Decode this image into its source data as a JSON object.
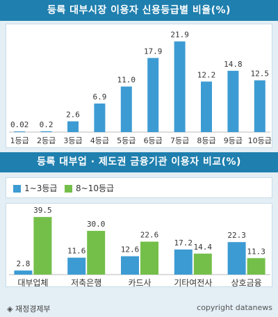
{
  "chart_data": [
    {
      "type": "bar",
      "title": "등록 대부시장 이용자 신용등급별 비율(%)",
      "categories": [
        "1등급",
        "2등급",
        "3등급",
        "4등급",
        "5등급",
        "6등급",
        "7등급",
        "8등급",
        "9등급",
        "10등급"
      ],
      "values": [
        0.02,
        0.2,
        2.6,
        6.9,
        11.0,
        17.9,
        21.9,
        12.2,
        14.8,
        12.5
      ],
      "value_labels": [
        "0.02",
        "0.2",
        "2.6",
        "6.9",
        "11.0",
        "17.9",
        "21.9",
        "12.2",
        "14.8",
        "12.5"
      ],
      "ylim": [
        0,
        23
      ],
      "grid": false,
      "color": "#3d9bd3"
    },
    {
      "type": "bar",
      "title": "등록 대부업 · 제도권 금융기관 이용자 비교(%)",
      "categories": [
        "대부업체",
        "저축은행",
        "카드사",
        "기타여전사",
        "상호금융"
      ],
      "series": [
        {
          "name": "1~3등급",
          "values": [
            2.8,
            11.6,
            12.6,
            17.2,
            22.3
          ],
          "value_labels": [
            "2.8",
            "11.6",
            "12.6",
            "17.2",
            "22.3"
          ],
          "color": "#3d9bd3"
        },
        {
          "name": "8~10등급",
          "values": [
            39.5,
            30.0,
            22.6,
            14.4,
            11.3
          ],
          "value_labels": [
            "39.5",
            "30.0",
            "22.6",
            "14.4",
            "11.3"
          ],
          "color": "#74bf4a"
        }
      ],
      "ylim": [
        0,
        41
      ],
      "grid": false,
      "legend": "top-left"
    }
  ],
  "footer": {
    "source": "◈ 재정경제부",
    "credit": "copyright datanews"
  }
}
